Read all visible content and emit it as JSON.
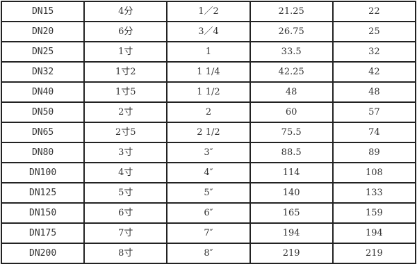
{
  "table": {
    "rows": [
      [
        "DN15",
        "4分",
        "1／2",
        "21.25",
        "22"
      ],
      [
        "DN20",
        "6分",
        "3／4",
        "26.75",
        "25"
      ],
      [
        "DN25",
        "1寸",
        "1",
        "33.5",
        "32"
      ],
      [
        "DN32",
        "1寸2",
        "1 1/4",
        "42.25",
        "42"
      ],
      [
        "DN40",
        "1寸5",
        "1 1/2",
        "48",
        "48"
      ],
      [
        "DN50",
        "2寸",
        "2",
        "60",
        "57"
      ],
      [
        "DN65",
        "2寸5",
        "2 1/2",
        "75.5",
        "74"
      ],
      [
        "DN80",
        "3寸",
        "3″",
        "88.5",
        "89"
      ],
      [
        "DN100",
        "4寸",
        "4″",
        "114",
        "108"
      ],
      [
        "DN125",
        "5寸",
        "5″",
        "140",
        "133"
      ],
      [
        "DN150",
        "6寸",
        "6″",
        "165",
        "159"
      ],
      [
        "DN175",
        "7寸",
        "7″",
        "194",
        "194"
      ],
      [
        "DN200",
        "8寸",
        "8″",
        "219",
        "219"
      ]
    ]
  }
}
